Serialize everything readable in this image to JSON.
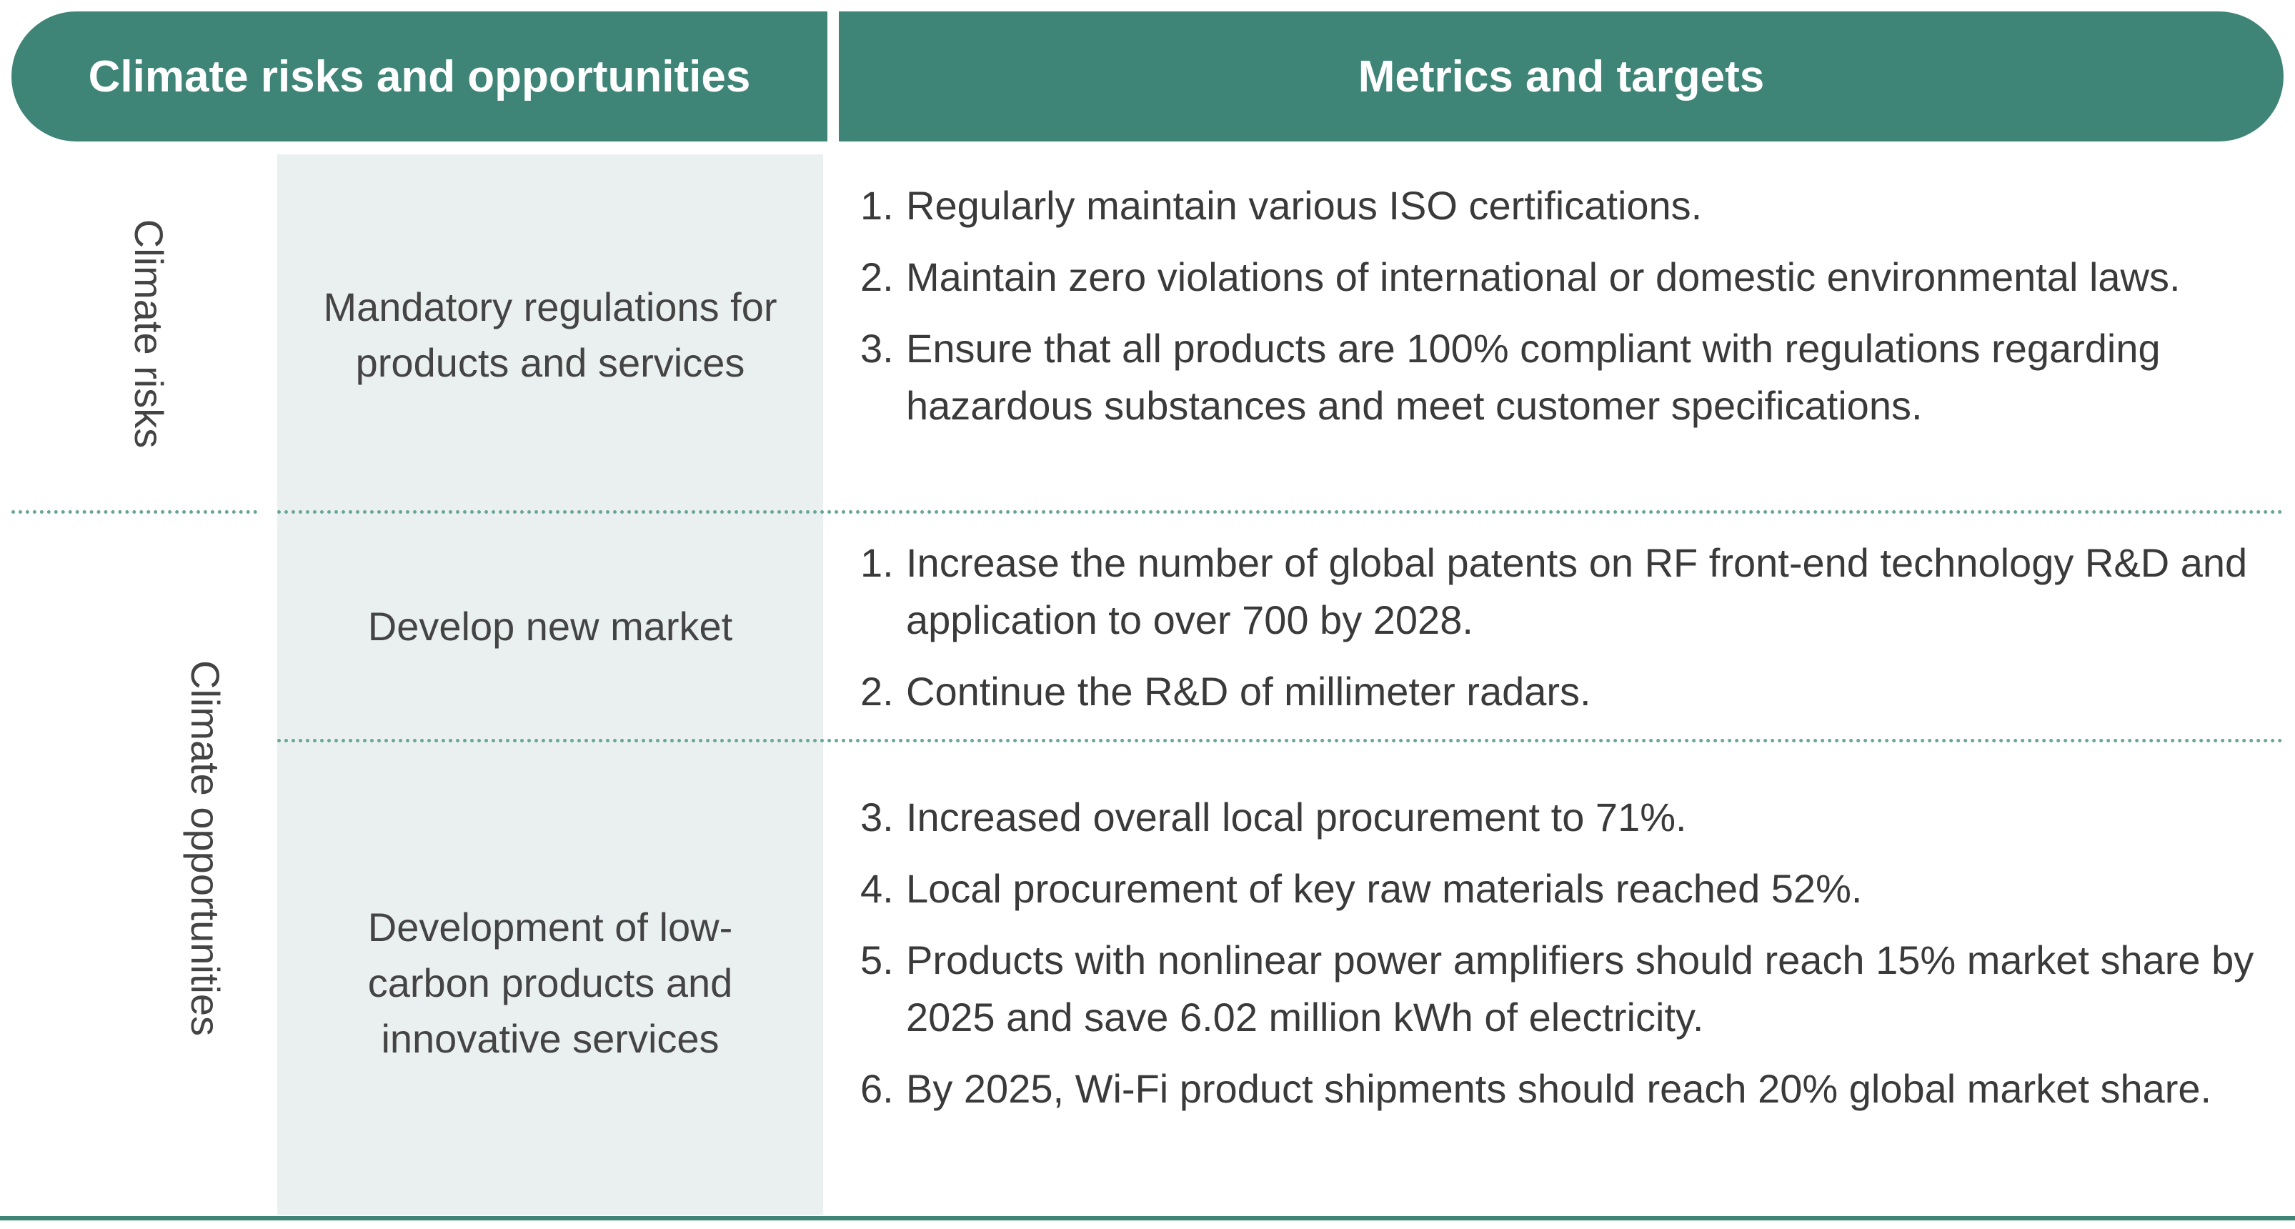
{
  "header": {
    "left_title": "Climate risks and opportunities",
    "right_title": "Metrics and targets"
  },
  "rows": {
    "risks_label": "Climate risks",
    "opportunities_label": "Climate opportunities"
  },
  "categories": {
    "mandatory": [
      "Mandatory regulations for",
      "products and services"
    ],
    "new_market": "Develop new market",
    "low_carbon": [
      "Development of low-",
      "carbon products and",
      "innovative services"
    ]
  },
  "metrics": {
    "mandatory": [
      {
        "num": "1.",
        "text": "Regularly maintain various ISO certifications."
      },
      {
        "num": "2.",
        "text": "Maintain zero violations of international or domestic environmental laws."
      },
      {
        "num": "3.",
        "text": "Ensure that all products are 100% compliant with regulations regarding hazardous substances and meet customer specifications."
      }
    ],
    "new_market": [
      {
        "num": "1.",
        "text": "Increase the number of global patents on RF front-end technology R&D and application to over 700 by 2028."
      },
      {
        "num": "2.",
        "text": "Continue the R&D of millimeter radars."
      }
    ],
    "low_carbon": [
      {
        "num": "3.",
        "text": "Increased overall local procurement to 71%."
      },
      {
        "num": "4.",
        "text": "Local procurement of key raw materials reached 52%."
      },
      {
        "num": "5.",
        "text": "Products with nonlinear power amplifiers should reach 15% market share by 2025 and save 6.02 million kWh of electricity."
      },
      {
        "num": "6.",
        "text": "By 2025, Wi-Fi product shipments should reach 20% global market share."
      }
    ]
  },
  "colors": {
    "header_bg": "#3f8577",
    "panel_bg": "#eaf0ef",
    "separator": "#6aa698"
  }
}
